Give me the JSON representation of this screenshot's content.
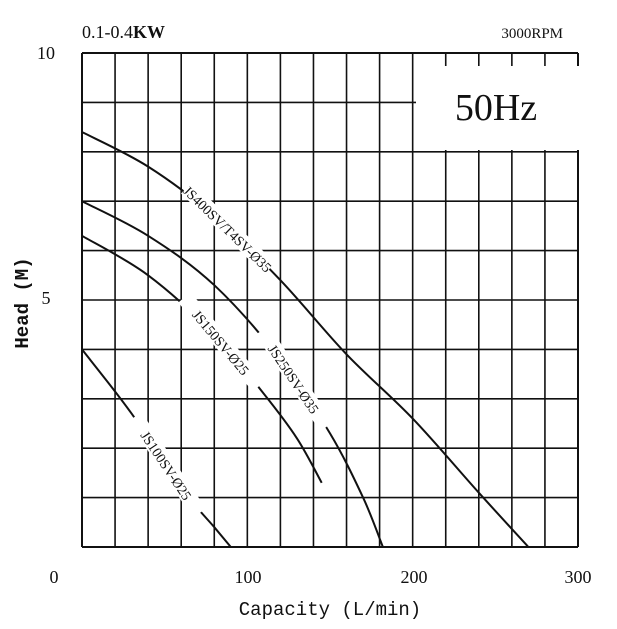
{
  "chart_data": {
    "type": "line",
    "header_left_prefix": "0.1-0.4",
    "header_left_unit": "KW",
    "header_right": "3000RPM",
    "frequency_label": "50Hz",
    "xlabel": "Capacity (L/min)",
    "ylabel": "Head (M)",
    "xlim": [
      0,
      300
    ],
    "ylim": [
      0,
      10
    ],
    "x_tick_labels": [
      "0",
      "100",
      "200",
      "300"
    ],
    "y_tick_labels": [
      "10",
      "5"
    ],
    "grid": true,
    "grid_x_step": 20,
    "grid_y_step": 1,
    "series": [
      {
        "name": "JS400SV/T4SV-Ø35",
        "x": [
          0,
          40,
          80,
          120,
          160,
          200,
          240,
          270
        ],
        "y": [
          8.4,
          7.7,
          6.7,
          5.4,
          3.9,
          2.6,
          1.1,
          0.0
        ]
      },
      {
        "name": "JS250SV-Ø35",
        "x": [
          0,
          40,
          80,
          120,
          150,
          170,
          182
        ],
        "y": [
          7.0,
          6.3,
          5.3,
          3.8,
          2.3,
          1.0,
          0.0
        ]
      },
      {
        "name": "JS150SV-Ø25",
        "x": [
          0,
          40,
          80,
          110,
          130,
          145
        ],
        "y": [
          6.3,
          5.5,
          4.3,
          3.1,
          2.2,
          1.3
        ]
      },
      {
        "name": "JS100SV-Ø25",
        "x": [
          0,
          30,
          60,
          80,
          90
        ],
        "y": [
          4.0,
          2.7,
          1.2,
          0.4,
          0.0
        ]
      }
    ]
  }
}
